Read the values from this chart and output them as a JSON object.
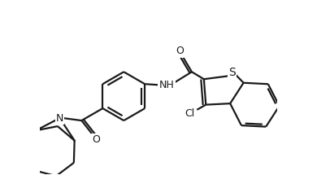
{
  "bg_color": "#ffffff",
  "line_color": "#1a1a1a",
  "line_width": 1.6,
  "font_size": 9,
  "atoms": {
    "S": "S",
    "NH": "NH",
    "N": "N",
    "O": "O",
    "Cl": "Cl"
  }
}
